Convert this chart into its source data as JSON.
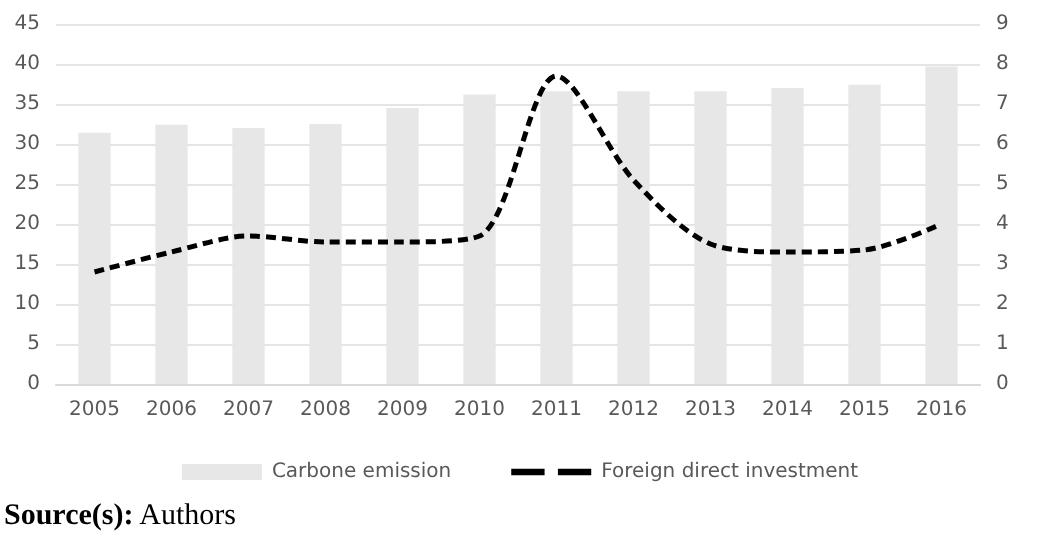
{
  "chart_data": {
    "type": "bar",
    "categories": [
      "2005",
      "2006",
      "2007",
      "2008",
      "2009",
      "2010",
      "2011",
      "2012",
      "2013",
      "2014",
      "2015",
      "2016"
    ],
    "series": [
      {
        "name": "Carbone emission",
        "color": "#e7e7e7",
        "values": [
          31.4,
          32.4,
          32.0,
          32.5,
          34.5,
          36.2,
          36.6,
          36.6,
          36.6,
          37.0,
          37.4,
          39.7
        ]
      },
      {
        "name": "Foreign direct investment",
        "type": "line",
        "axis": "y2",
        "color": "#000000",
        "line_style": "dashed",
        "values": [
          2.8,
          3.3,
          3.7,
          3.55,
          3.55,
          3.7,
          7.7,
          5.1,
          3.5,
          3.3,
          3.35,
          4.0
        ]
      }
    ],
    "ylim": [
      0,
      45
    ],
    "yticks": [
      0,
      5,
      10,
      15,
      20,
      25,
      30,
      35,
      40,
      45
    ],
    "y2lim": [
      0,
      9
    ],
    "y2ticks": [
      0,
      1,
      2,
      3,
      4,
      5,
      6,
      7,
      8,
      9
    ],
    "grid": "y",
    "legend": "bottom",
    "marker": "none",
    "annotations": [
      "Source(s): Authors"
    ]
  }
}
